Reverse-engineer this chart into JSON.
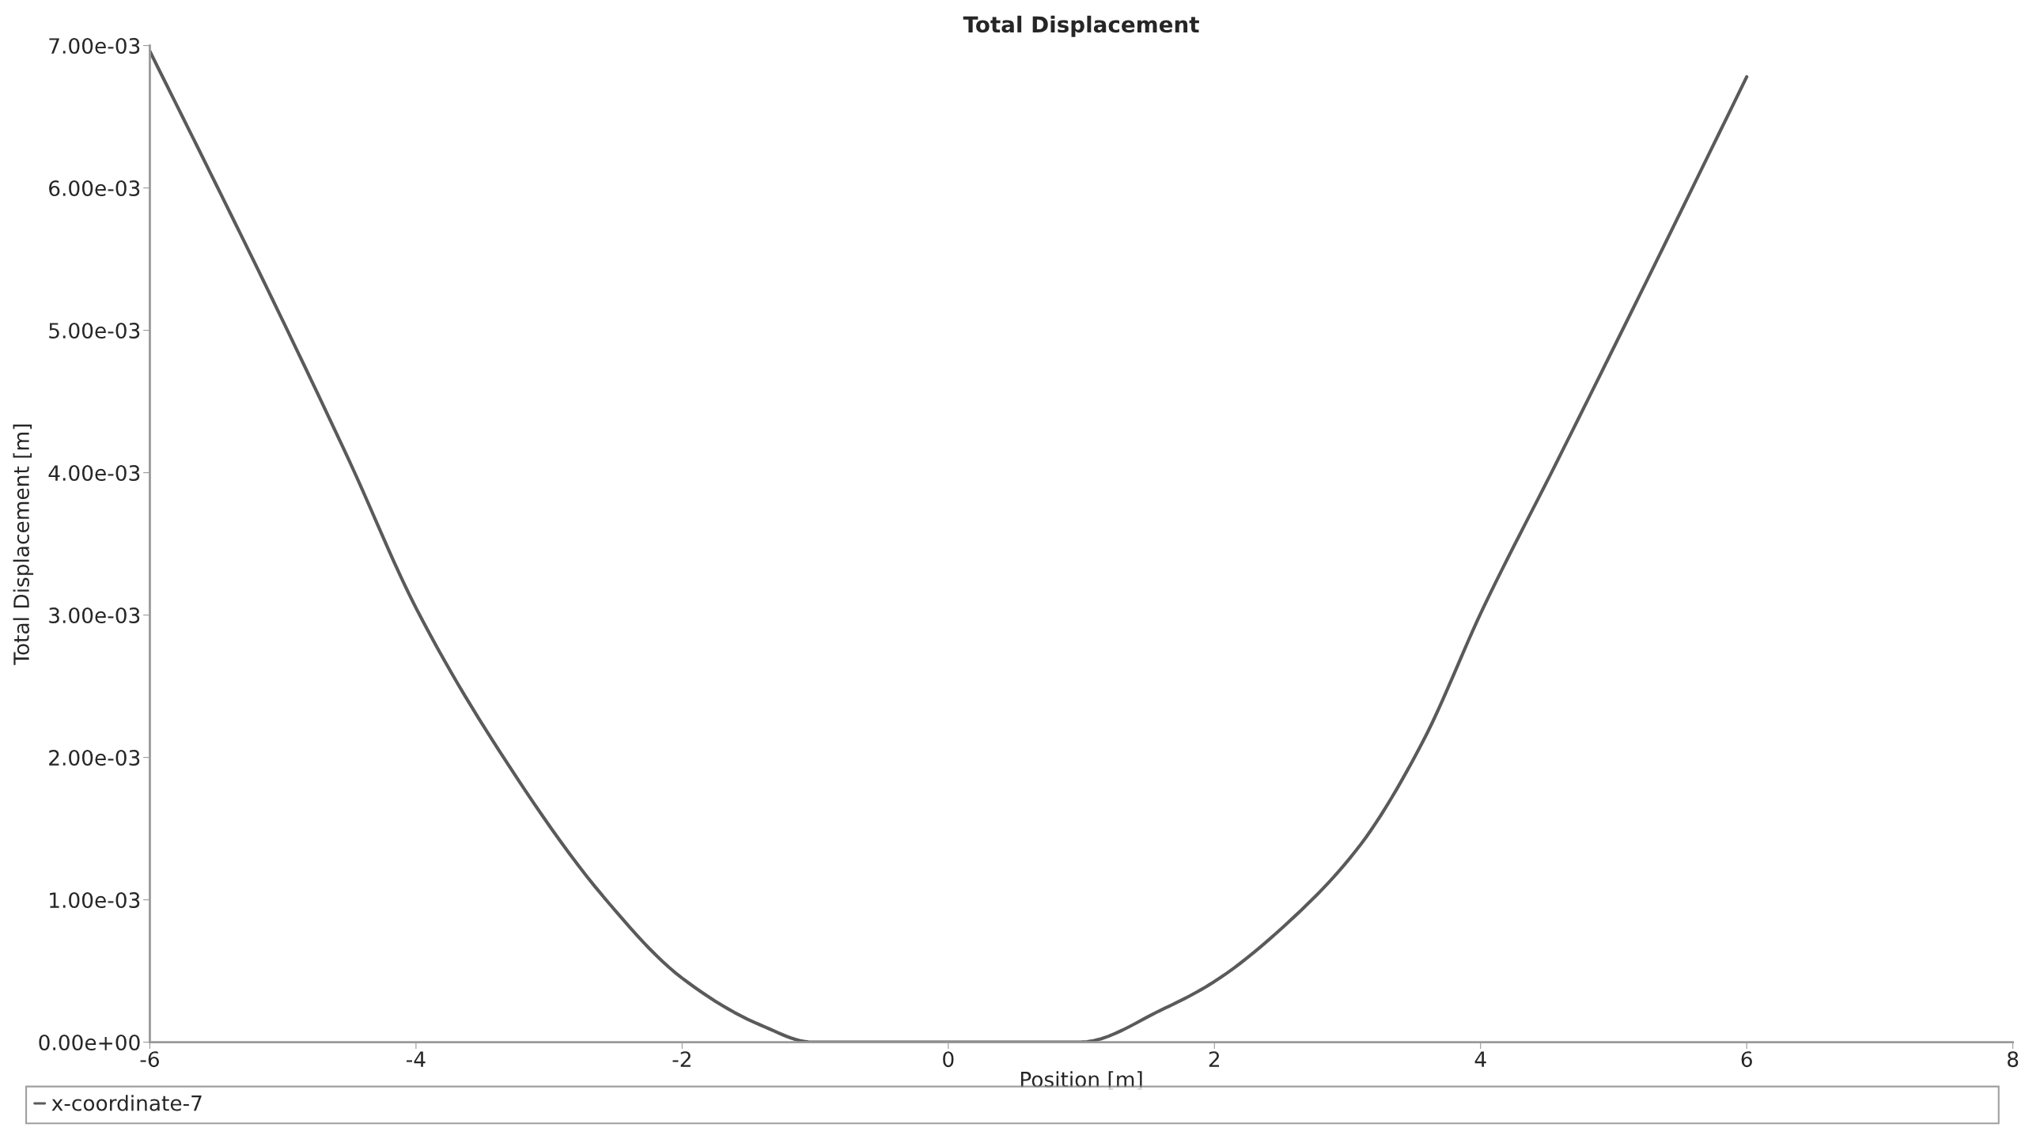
{
  "chart_data": {
    "type": "line",
    "title": "Total Displacement",
    "xlabel": "Position [m]",
    "ylabel": "Total Displacement [m]",
    "series": [
      {
        "name": "x-coordinate-7",
        "color": "#5a5a5a",
        "x": [
          -6,
          -5.5,
          -5.08,
          -4.5,
          -4.0,
          -3.37,
          -2.59,
          -2.0,
          -1.41,
          -1.02,
          -0.75,
          0,
          0.75,
          0.99,
          1.63,
          1.99,
          2.61,
          3.1,
          3.56,
          4.02,
          4.57,
          5.25,
          6
        ],
        "values": [
          0.00696,
          0.00602,
          0.00522,
          0.00408,
          0.00305,
          0.00204,
          0.00102,
          0.00045,
          0.00012,
          0,
          0,
          0,
          0,
          0,
          0.00024,
          0.00042,
          0.00089,
          0.00139,
          0.0021,
          0.00305,
          0.00407,
          0.00535,
          0.00678
        ]
      }
    ],
    "xlim": [
      -6,
      8
    ],
    "xticks": [
      -6,
      -4,
      -2,
      0,
      2,
      4,
      6,
      8
    ],
    "ylim": [
      0,
      0.007
    ],
    "yticks": [
      {
        "value": 0,
        "label": "0.00e+00"
      },
      {
        "value": 0.001,
        "label": "1.00e-03"
      },
      {
        "value": 0.002,
        "label": "2.00e-03"
      },
      {
        "value": 0.003,
        "label": "3.00e-03"
      },
      {
        "value": 0.004,
        "label": "4.00e-03"
      },
      {
        "value": 0.005,
        "label": "5.00e-03"
      },
      {
        "value": 0.006,
        "label": "6.00e-03"
      },
      {
        "value": 0.007,
        "label": "7.00e-03"
      }
    ],
    "grid": false,
    "legend": "bottom",
    "marker": "none",
    "line_style": "solid"
  }
}
